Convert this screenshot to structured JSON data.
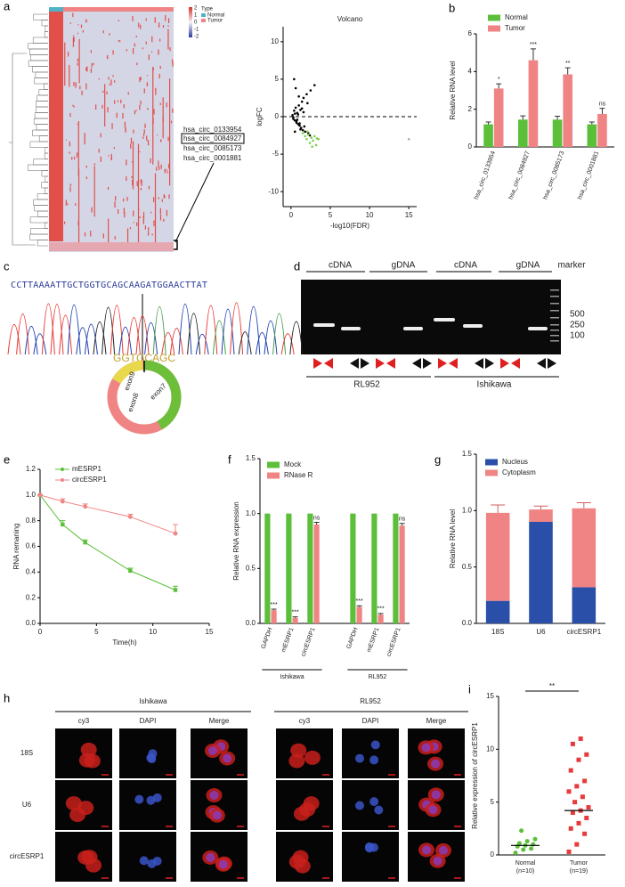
{
  "panel_labels": [
    "a",
    "b",
    "c",
    "d",
    "e",
    "f",
    "g",
    "h",
    "i"
  ],
  "heatmap": {
    "legend_title": "Type",
    "legend_items": [
      "Normal",
      "Tumor"
    ],
    "scale": [
      "2",
      "1",
      "0",
      "-1",
      "-2"
    ],
    "row_labels": [
      "hsa_circ_0133954",
      "hsa_circ_0084927",
      "hsa_circ_0085173",
      "hsa_circ_0001881"
    ]
  },
  "sequence": {
    "bases": "CCTTAAAATTGCTGGTGCAGCAAGATGGAACTTAT",
    "junction": "GGTGCAGC",
    "exons": [
      "exon9",
      "exon8",
      "exon7"
    ]
  },
  "gel": {
    "lanes": [
      "cDNA",
      "gDNA",
      "cDNA",
      "gDNA"
    ],
    "marker": "marker",
    "ladder": [
      "500",
      "250",
      "100"
    ],
    "cell_lines": [
      "RL952",
      "Ishikawa"
    ]
  },
  "fish": {
    "cell_lines": [
      "Ishikawa",
      "RL952"
    ],
    "channels": [
      "cy3",
      "DAPI",
      "Merge"
    ],
    "rows": [
      "18S",
      "U6",
      "circESRP1"
    ]
  },
  "chart_data": [
    {
      "type": "scatter",
      "title": "Volcano",
      "xlabel": "-log10(FDR)",
      "ylabel": "logFC",
      "xlim": [
        -1,
        16
      ],
      "ylim": [
        -12,
        12
      ],
      "xticks": [
        0,
        5,
        10,
        15
      ],
      "yticks": [
        -10,
        -5,
        0,
        5,
        10
      ],
      "hline": 0,
      "series": [
        {
          "color": "#000000",
          "x": [
            0.2,
            0.3,
            0.4,
            0.5,
            0.6,
            0.7,
            0.8,
            0.9,
            1.0,
            1.1,
            1.2,
            1.3,
            1.4,
            1.5,
            1.6,
            1.8,
            2.0,
            2.2,
            2.5,
            0.3,
            0.5,
            0.7,
            0.9,
            1.1,
            1.4,
            1.7,
            2.1,
            0.4,
            0.6,
            0.8,
            1.0,
            1.2,
            1.6,
            2.4,
            3.0,
            0.5
          ],
          "values": [
            0.2,
            -0.3,
            0.8,
            -0.5,
            1.2,
            -0.8,
            0.5,
            -1.0,
            1.5,
            -1.2,
            0.9,
            -1.5,
            2.0,
            -1.8,
            2.5,
            -2.0,
            3.0,
            -2.2,
            3.5,
            -0.1,
            0.4,
            -0.6,
            0.3,
            -0.9,
            1.1,
            -1.3,
            1.8,
            5.0,
            3.8,
            -0.4,
            2.7,
            -1.7,
            0.6,
            -2.5,
            4.2,
            -2.0
          ]
        },
        {
          "color": "#7ccd4f",
          "x": [
            1.5,
            1.8,
            2.0,
            2.2,
            2.4,
            2.6,
            2.8,
            3.0,
            3.2,
            3.5,
            2.1,
            2.7,
            3.3
          ],
          "values": [
            -2.2,
            -2.6,
            -3.0,
            -2.4,
            -3.5,
            -2.8,
            -3.2,
            -2.6,
            -3.8,
            -3.0,
            -2.0,
            -4.0,
            -2.9
          ]
        },
        {
          "color": "#aaaaaa",
          "x": [
            15.0
          ],
          "values": [
            -3.0
          ]
        }
      ]
    },
    {
      "type": "bar",
      "ylabel": "Relative RNA level",
      "ylim": [
        0,
        6
      ],
      "yticks": [
        0,
        2,
        4,
        6
      ],
      "categories": [
        "hsa_circ_0133954",
        "hsa_circ_0084927",
        "hsa_circ_0085173",
        "hsa_circ_0001881"
      ],
      "series": [
        {
          "name": "Normal",
          "color": "#5cbf3a",
          "values": [
            1.2,
            1.45,
            1.45,
            1.2
          ],
          "errors": [
            0.12,
            0.2,
            0.18,
            0.12
          ]
        },
        {
          "name": "Tumor",
          "color": "#f08484",
          "values": [
            3.1,
            4.6,
            3.85,
            1.75
          ],
          "errors": [
            0.25,
            0.6,
            0.35,
            0.3
          ],
          "annotations": [
            "*",
            "***",
            "**",
            "ns"
          ]
        }
      ]
    },
    {
      "type": "line",
      "xlabel": "Time(h)",
      "ylabel": "RNA remaning",
      "xlim": [
        0,
        15
      ],
      "xticks": [
        0,
        5,
        10,
        15
      ],
      "ylim": [
        0,
        1.2
      ],
      "yticks": [
        {
          "value": 0,
          "label": "0.0"
        },
        {
          "value": 0.2,
          "label": "0.2"
        },
        {
          "value": 0.4,
          "label": "0.4"
        },
        {
          "value": 0.6,
          "label": "0.6"
        },
        {
          "value": 0.8,
          "label": "0.8"
        },
        {
          "value": 1,
          "label": "1.0"
        },
        {
          "value": 1.2,
          "label": "1.2"
        }
      ],
      "x": [
        0,
        2,
        4,
        8,
        12
      ],
      "series": [
        {
          "name": "mESRP1",
          "color": "#5cbf3a",
          "values": [
            1,
            0.77,
            0.63,
            0.41,
            0.26
          ],
          "errors": [
            0,
            0.03,
            0.02,
            0.02,
            0.03
          ]
        },
        {
          "name": "circESRP1",
          "color": "#f08484",
          "values": [
            1,
            0.95,
            0.91,
            0.83,
            0.7
          ],
          "errors": [
            0,
            0.02,
            0.02,
            0.02,
            0.07
          ]
        }
      ]
    },
    {
      "type": "bar",
      "ylabel": "Relative RNA expression",
      "ylim": [
        0,
        1.5
      ],
      "yticks": [
        {
          "value": 0,
          "label": "0.0"
        },
        {
          "value": 0.5,
          "label": "0.5"
        },
        {
          "value": 1,
          "label": "1.0"
        },
        {
          "value": 1.5,
          "label": "1.5"
        }
      ],
      "categories": [
        "GAPDH",
        "mESRP1",
        "circESRP1",
        "GAPDH",
        "mESRP1",
        "circESRP1"
      ],
      "groups": [
        "Ishikawa",
        "RL952"
      ],
      "series": [
        {
          "name": "Mock",
          "color": "#5cbf3a",
          "values": [
            1,
            1,
            1,
            1,
            1,
            1
          ]
        },
        {
          "name": "RNase R",
          "color": "#f08484",
          "values": [
            0.12,
            0.05,
            0.9,
            0.15,
            0.08,
            0.89
          ],
          "errors": [
            0.01,
            0.01,
            0.02,
            0.01,
            0.01,
            0.02
          ],
          "annotations": [
            "***",
            "***",
            "ns",
            "***",
            "***",
            "ns"
          ]
        }
      ]
    },
    {
      "type": "stacked_bar",
      "ylabel": "Relative RNA level",
      "ylim": [
        0,
        1.5
      ],
      "yticks": [
        {
          "value": 0,
          "label": "0.0"
        },
        {
          "value": 0.5,
          "label": "0.5"
        },
        {
          "value": 1,
          "label": "1.0"
        },
        {
          "value": 1.5,
          "label": "1.5"
        }
      ],
      "categories": [
        "18S",
        "U6",
        "circESRP1"
      ],
      "series": [
        {
          "name": "Nucleus",
          "color": "#2a4fa8",
          "values": [
            0.2,
            0.9,
            0.32
          ],
          "errors": [
            0.01,
            0.03,
            0.07
          ]
        },
        {
          "name": "Cytoplasm",
          "color": "#f08484",
          "values": [
            0.78,
            0.11,
            0.7
          ],
          "errors": [
            0.07,
            0.03,
            0.05
          ]
        }
      ]
    },
    {
      "type": "strip",
      "ylabel": "Relative expression of circESRP1",
      "ylim": [
        0,
        15
      ],
      "yticks": [
        0,
        5,
        10,
        15
      ],
      "categories": [
        "Normal",
        "Tumor"
      ],
      "category_notes": [
        "(n=10)",
        "(n=19)"
      ],
      "annotation": "**",
      "medians": [
        0.9,
        4.2
      ],
      "series": [
        {
          "color": "#5cbf3a",
          "values": [
            0.2,
            0.5,
            0.6,
            0.8,
            0.9,
            1.0,
            1.1,
            1.3,
            1.5,
            2.3
          ]
        },
        {
          "color": "#e83a3a",
          "values": [
            0.3,
            1.0,
            2.0,
            2.5,
            3.0,
            3.5,
            4.0,
            4.2,
            4.5,
            5.0,
            5.5,
            6.0,
            6.5,
            7.0,
            8.0,
            9.0,
            9.5,
            10.5,
            11.0
          ]
        }
      ]
    }
  ]
}
